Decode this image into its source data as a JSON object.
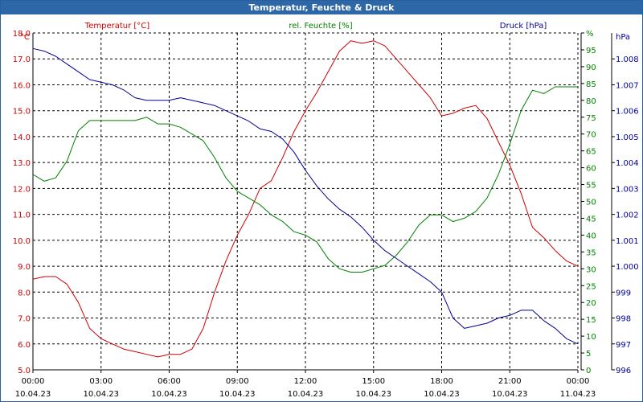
{
  "window": {
    "title": "Temperatur, Feuchte & Druck"
  },
  "chart_data": {
    "type": "line",
    "title": "Temperatur, Feuchte & Druck",
    "x_ticks": [
      {
        "time": "00:00",
        "date": "10.04.23"
      },
      {
        "time": "03:00",
        "date": "10.04.23"
      },
      {
        "time": "06:00",
        "date": "10.04.23"
      },
      {
        "time": "09:00",
        "date": "10.04.23"
      },
      {
        "time": "12:00",
        "date": "10.04.23"
      },
      {
        "time": "15:00",
        "date": "10.04.23"
      },
      {
        "time": "18:00",
        "date": "10.04.23"
      },
      {
        "time": "21:00",
        "date": "10.04.23"
      },
      {
        "time": "00:00",
        "date": "11.04.23"
      }
    ],
    "x_hours": [
      0,
      0.5,
      1,
      1.5,
      2,
      2.5,
      3,
      3.5,
      4,
      4.5,
      5,
      5.5,
      6,
      6.5,
      7,
      7.5,
      8,
      8.5,
      9,
      9.5,
      10,
      10.5,
      11,
      11.5,
      12,
      12.5,
      13,
      13.5,
      14,
      14.5,
      15,
      15.5,
      16,
      16.5,
      17,
      17.5,
      18,
      18.5,
      19,
      19.5,
      20,
      20.5,
      21,
      21.5,
      22,
      22.5,
      23,
      23.5,
      24
    ],
    "axes": {
      "left": {
        "unit": "°C",
        "ylim": [
          5.0,
          18.0
        ],
        "ticks": [
          "18.0",
          "17.0",
          "16.0",
          "15.0",
          "14.0",
          "13.0",
          "12.0",
          "11.0",
          "10.0",
          "9.0",
          "8.0",
          "7.0",
          "6.0",
          "5.0"
        ],
        "color": "#cc0000"
      },
      "middle": {
        "unit": "%",
        "ylim": [
          0,
          100
        ],
        "ticks": [
          "%",
          "95",
          "90",
          "85",
          "80",
          "75",
          "70",
          "65",
          "60",
          "55",
          "50",
          "45",
          "40",
          "35",
          "30",
          "25",
          "20",
          "15",
          "10",
          "5",
          "0"
        ],
        "color": "#008000"
      },
      "right": {
        "unit": "hPa",
        "ylim": [
          996,
          1009
        ],
        "ticks": [
          "1.008",
          "1.007",
          "1.006",
          "1.005",
          "1.004",
          "1.003",
          "1.002",
          "1.001",
          "1.000",
          "999",
          "998",
          "997",
          "996"
        ],
        "color": "#000099"
      }
    },
    "grid": true,
    "series": [
      {
        "name": "Temperatur [°C]",
        "axis": "left",
        "color": "#cc0000",
        "values": [
          8.5,
          8.6,
          8.6,
          8.3,
          7.6,
          6.6,
          6.2,
          6.0,
          5.8,
          5.7,
          5.6,
          5.5,
          5.6,
          5.6,
          5.8,
          6.6,
          8.0,
          9.2,
          10.2,
          11.0,
          12.0,
          12.3,
          13.2,
          14.2,
          15.0,
          15.7,
          16.5,
          17.3,
          17.7,
          17.6,
          17.7,
          17.5,
          17.0,
          16.5,
          16.0,
          15.5,
          14.8,
          14.9,
          15.1,
          15.2,
          14.7,
          13.8,
          12.9,
          11.8,
          10.5,
          10.1,
          9.6,
          9.2,
          9.0
        ]
      },
      {
        "name": "rel. Feuchte [%]",
        "axis": "middle",
        "color": "#008000",
        "values": [
          58,
          56,
          57,
          62,
          71,
          74,
          74,
          74,
          74,
          74,
          75,
          73,
          73,
          72,
          70,
          68,
          63,
          57,
          53,
          51,
          49,
          46,
          44,
          41,
          40,
          38,
          33,
          30,
          29,
          29,
          30,
          31,
          34,
          38,
          43,
          46,
          46,
          44,
          45,
          47,
          51,
          58,
          67,
          77,
          83,
          82,
          84,
          84,
          84
        ]
      },
      {
        "name": "Druck [hPa]",
        "axis": "right",
        "color": "#000099",
        "values": [
          1008.4,
          1008.3,
          1008.1,
          1007.8,
          1007.5,
          1007.2,
          1007.1,
          1007.0,
          1006.8,
          1006.5,
          1006.4,
          1006.4,
          1006.4,
          1006.5,
          1006.4,
          1006.3,
          1006.2,
          1006.0,
          1005.8,
          1005.6,
          1005.3,
          1005.2,
          1004.9,
          1004.4,
          1003.7,
          1003.1,
          1002.6,
          1002.2,
          1001.9,
          1001.5,
          1001.0,
          1000.6,
          1000.3,
          1000.0,
          999.7,
          999.4,
          999.0,
          998.0,
          997.6,
          997.7,
          997.8,
          998.0,
          998.1,
          998.3,
          998.3,
          997.9,
          997.6,
          997.2,
          997.0
        ]
      }
    ]
  }
}
